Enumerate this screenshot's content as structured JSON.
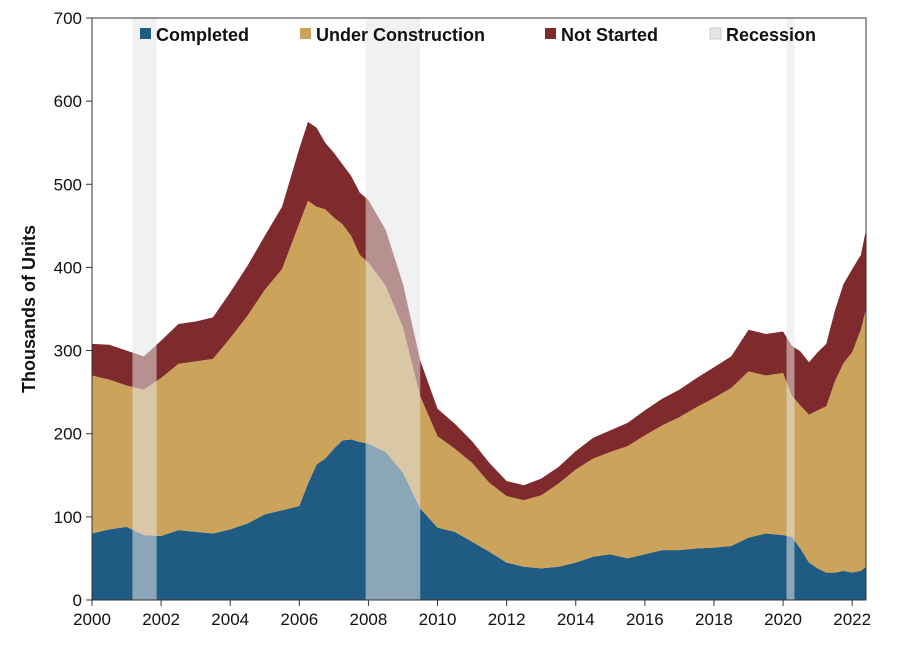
{
  "chart_data": {
    "type": "area",
    "stacked": true,
    "ylabel": "Thousands of Units",
    "xlabel": "",
    "title": "",
    "xlim": [
      2000,
      2022.4
    ],
    "ylim": [
      0,
      700
    ],
    "x_ticks": [
      2000,
      2002,
      2004,
      2006,
      2008,
      2010,
      2012,
      2014,
      2016,
      2018,
      2020,
      2022
    ],
    "x_tick_labels": [
      "2000",
      "2002",
      "2004",
      "2006",
      "2008",
      "2010",
      "2012",
      "2014",
      "2016",
      "2018",
      "2020",
      "2022"
    ],
    "y_ticks": [
      0,
      100,
      200,
      300,
      400,
      500,
      600,
      700
    ],
    "y_tick_labels": [
      "0",
      "100",
      "200",
      "300",
      "400",
      "500",
      "600",
      "700"
    ],
    "grid": false,
    "legend_position": "top",
    "legend": [
      "Completed",
      "Under Construction",
      "Not Started",
      "Recession"
    ],
    "x": [
      2000.0,
      2000.5,
      2001.0,
      2001.5,
      2002.0,
      2002.5,
      2003.0,
      2003.5,
      2004.0,
      2004.5,
      2005.0,
      2005.5,
      2006.0,
      2006.25,
      2006.5,
      2006.75,
      2007.0,
      2007.25,
      2007.5,
      2007.75,
      2008.0,
      2008.5,
      2009.0,
      2009.5,
      2010.0,
      2010.5,
      2011.0,
      2011.5,
      2012.0,
      2012.5,
      2013.0,
      2013.5,
      2014.0,
      2014.5,
      2015.0,
      2015.5,
      2016.0,
      2016.5,
      2017.0,
      2017.5,
      2018.0,
      2018.5,
      2019.0,
      2019.5,
      2020.0,
      2020.25,
      2020.5,
      2020.75,
      2021.0,
      2021.25,
      2021.5,
      2021.75,
      2022.0,
      2022.25,
      2022.4
    ],
    "series": [
      {
        "name": "Completed",
        "color": "#1f5b82",
        "values": [
          80,
          85,
          88,
          78,
          77,
          84,
          82,
          80,
          85,
          92,
          103,
          108,
          113,
          140,
          163,
          170,
          182,
          192,
          193,
          190,
          188,
          178,
          153,
          110,
          87,
          82,
          70,
          58,
          45,
          40,
          38,
          40,
          45,
          52,
          55,
          50,
          55,
          60,
          60,
          62,
          63,
          65,
          75,
          80,
          78,
          76,
          62,
          45,
          38,
          33,
          33,
          35,
          33,
          35,
          40
        ]
      },
      {
        "name": "Under Construction",
        "color": "#cca35a",
        "values": [
          190,
          180,
          170,
          175,
          190,
          200,
          205,
          210,
          230,
          250,
          270,
          290,
          340,
          340,
          310,
          300,
          278,
          260,
          245,
          225,
          218,
          200,
          175,
          135,
          110,
          100,
          95,
          83,
          80,
          80,
          88,
          100,
          112,
          118,
          123,
          135,
          143,
          150,
          160,
          170,
          180,
          190,
          200,
          190,
          195,
          170,
          172,
          178,
          190,
          200,
          230,
          250,
          265,
          290,
          310
        ]
      },
      {
        "name": "Not Started",
        "color": "#7f2a2c",
        "values": [
          38,
          42,
          42,
          40,
          45,
          48,
          48,
          50,
          55,
          60,
          65,
          75,
          90,
          95,
          95,
          80,
          78,
          72,
          72,
          75,
          75,
          67,
          52,
          43,
          33,
          30,
          26,
          24,
          18,
          18,
          20,
          20,
          22,
          25,
          26,
          28,
          30,
          32,
          33,
          35,
          37,
          38,
          50,
          50,
          50,
          60,
          65,
          63,
          70,
          75,
          85,
          95,
          100,
          90,
          95
        ]
      }
    ],
    "recessions": [
      [
        2001.17,
        2001.87
      ],
      [
        2007.92,
        2009.5
      ],
      [
        2020.1,
        2020.33
      ]
    ],
    "recession_color": "#e3e5e3"
  }
}
